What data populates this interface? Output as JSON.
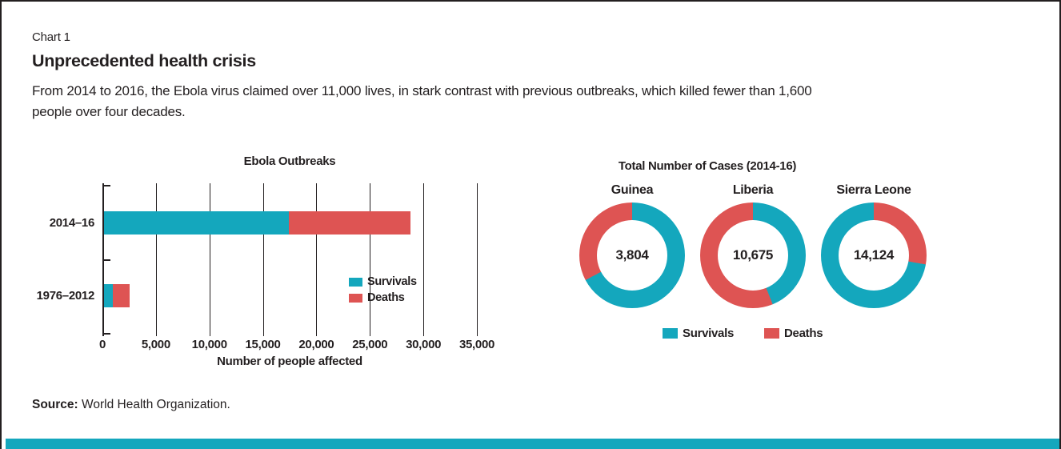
{
  "frame": {
    "label": "Chart 1"
  },
  "header": {
    "title": "Unprecedented health crisis",
    "subtitle_lines": [
      "From 2014 to 2016, the Ebola virus claimed over 11,000 lives, in stark contrast with previous outbreaks, which killed fewer than 1,600",
      "people over four decades."
    ]
  },
  "colors": {
    "teal": "#14A7BD",
    "red": "#DE5453",
    "ink": "#231F20"
  },
  "source": {
    "label": "Source:",
    "text": " World Health Organization."
  },
  "chart_data": [
    {
      "type": "bar",
      "orientation": "horizontal",
      "stacked": true,
      "title": "Ebola Outbreaks",
      "categories": [
        "2014–16",
        "1976–2012"
      ],
      "series": [
        {
          "name": "Survivals",
          "color_key": "teal",
          "values": [
            17300,
            800
          ]
        },
        {
          "name": "Deaths",
          "color_key": "red",
          "values": [
            11350,
            1600
          ]
        }
      ],
      "xlabel": "Number of people affected",
      "xlim": [
        0,
        35000
      ],
      "xticks": [
        "0",
        "5,000",
        "10,000",
        "15,000",
        "20,000",
        "25,000",
        "30,000",
        "35,000"
      ],
      "grid": "vertical",
      "legend": {
        "position": "inside-right",
        "entries": [
          "Survivals",
          "Deaths"
        ]
      }
    },
    {
      "type": "pie",
      "variant": "donut",
      "title": "Total Number of Cases (2014-16)",
      "donuts": [
        {
          "label": "Guinea",
          "total": "3,804",
          "segments": [
            {
              "name": "Survivals",
              "color_key": "teal",
              "from_deg": 0,
              "to_deg": 242
            },
            {
              "name": "Deaths",
              "color_key": "red",
              "from_deg": 242,
              "to_deg": 360
            }
          ]
        },
        {
          "label": "Liberia",
          "total": "10,675",
          "segments": [
            {
              "name": "Survivals",
              "color_key": "teal",
              "from_deg": 0,
              "to_deg": 158
            },
            {
              "name": "Deaths",
              "color_key": "red",
              "from_deg": 158,
              "to_deg": 360
            }
          ]
        },
        {
          "label": "Sierra Leone",
          "total": "14,124",
          "segments": [
            {
              "name": "Deaths",
              "color_key": "red",
              "from_deg": 0,
              "to_deg": 100
            },
            {
              "name": "Survivals",
              "color_key": "teal",
              "from_deg": 100,
              "to_deg": 360
            }
          ]
        }
      ],
      "legend": {
        "position": "bottom",
        "entries": [
          "Survivals",
          "Deaths"
        ]
      }
    }
  ]
}
